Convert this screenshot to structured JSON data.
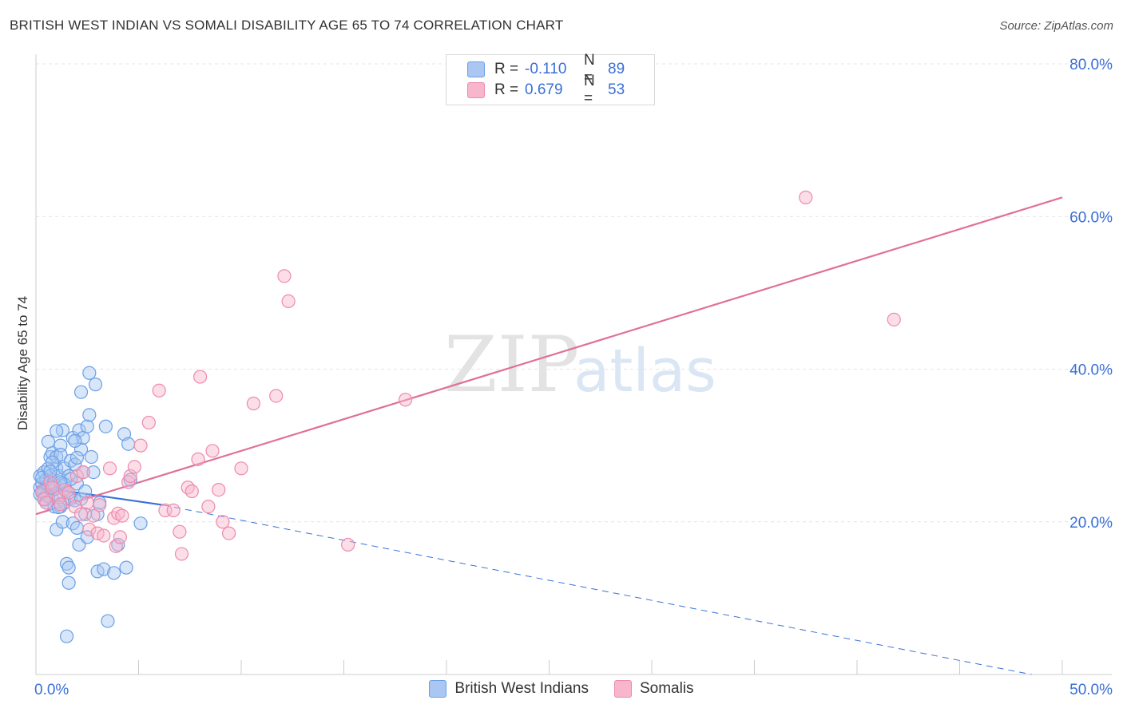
{
  "header": {
    "title": "BRITISH WEST INDIAN VS SOMALI DISABILITY AGE 65 TO 74 CORRELATION CHART",
    "source": "Source: ZipAtlas.com"
  },
  "watermark": {
    "zip": "ZIP",
    "atlas": "atlas"
  },
  "legend_stats": [
    {
      "r_label": "R =",
      "r_value": "-0.110",
      "n_label": "N =",
      "n_value": "89",
      "color": "#a9c7f2"
    },
    {
      "r_label": "R =",
      "r_value": "0.679",
      "n_label": "N =",
      "n_value": "53",
      "color": "#f7b6cb"
    }
  ],
  "chart_data": {
    "type": "scatter",
    "title": "BRITISH WEST INDIAN VS SOMALI DISABILITY AGE 65 TO 74 CORRELATION CHART",
    "xlabel": "",
    "ylabel": "Disability Age 65 to 74",
    "xlim": [
      0,
      50
    ],
    "ylim": [
      0,
      80
    ],
    "x_tick_labels": [
      {
        "value": 0,
        "label": "0.0%"
      },
      {
        "value": 50,
        "label": "50.0%"
      }
    ],
    "y_tick_labels": [
      {
        "value": 20,
        "label": "20.0%"
      },
      {
        "value": 40,
        "label": "40.0%"
      },
      {
        "value": 60,
        "label": "60.0%"
      },
      {
        "value": 80,
        "label": "80.0%"
      }
    ],
    "grid": true,
    "legend_position": "bottom",
    "series": [
      {
        "name": "British West Indians",
        "color": "#6a9fe6",
        "fill": "#a9c7f2",
        "line_color": "#3a72d6",
        "trend": {
          "solid": [
            [
              0,
              24.6
            ],
            [
              6.2,
              22.2
            ]
          ],
          "dashed": [
            [
              6.2,
              22.2
            ],
            [
              48.5,
              0.0
            ]
          ]
        },
        "points": [
          [
            0.2,
            24.5
          ],
          [
            0.2,
            26
          ],
          [
            0.3,
            25
          ],
          [
            0.3,
            23.8
          ],
          [
            0.4,
            26.5
          ],
          [
            0.4,
            24
          ],
          [
            0.5,
            25.5
          ],
          [
            0.5,
            22.5
          ],
          [
            0.6,
            24.8
          ],
          [
            0.6,
            27
          ],
          [
            0.6,
            30.5
          ],
          [
            0.7,
            26
          ],
          [
            0.7,
            24
          ],
          [
            0.7,
            28.5
          ],
          [
            0.8,
            23
          ],
          [
            0.8,
            29
          ],
          [
            0.9,
            25
          ],
          [
            0.9,
            22
          ],
          [
            1.0,
            27
          ],
          [
            1.0,
            28.5
          ],
          [
            1.0,
            19
          ],
          [
            1.1,
            23.5
          ],
          [
            1.1,
            26
          ],
          [
            1.2,
            22
          ],
          [
            1.2,
            30
          ],
          [
            1.2,
            28.8
          ],
          [
            1.3,
            25
          ],
          [
            1.3,
            32
          ],
          [
            1.3,
            20
          ],
          [
            1.4,
            22.5
          ],
          [
            1.4,
            27
          ],
          [
            1.5,
            24
          ],
          [
            1.5,
            14.5
          ],
          [
            1.5,
            5
          ],
          [
            1.6,
            26
          ],
          [
            1.6,
            14
          ],
          [
            1.6,
            12
          ],
          [
            1.7,
            28
          ],
          [
            1.7,
            23
          ],
          [
            1.8,
            19.8
          ],
          [
            1.8,
            31
          ],
          [
            1.9,
            22.8
          ],
          [
            1.9,
            27.5
          ],
          [
            2.0,
            25
          ],
          [
            2.0,
            19.2
          ],
          [
            2.1,
            17
          ],
          [
            2.1,
            32
          ],
          [
            2.2,
            23
          ],
          [
            2.2,
            37
          ],
          [
            2.2,
            29.5
          ],
          [
            2.3,
            31
          ],
          [
            2.3,
            26.5
          ],
          [
            2.4,
            21
          ],
          [
            2.4,
            24
          ],
          [
            2.5,
            32.5
          ],
          [
            2.5,
            18
          ],
          [
            2.6,
            34
          ],
          [
            2.6,
            39.5
          ],
          [
            2.7,
            28.5
          ],
          [
            2.8,
            26.5
          ],
          [
            2.9,
            38
          ],
          [
            3.0,
            21
          ],
          [
            3.0,
            13.5
          ],
          [
            3.1,
            22.5
          ],
          [
            3.3,
            13.8
          ],
          [
            3.4,
            32.5
          ],
          [
            3.5,
            7
          ],
          [
            3.8,
            13.3
          ],
          [
            4.0,
            17
          ],
          [
            4.3,
            31.5
          ],
          [
            4.4,
            14
          ],
          [
            4.5,
            30.2
          ],
          [
            4.6,
            25.5
          ],
          [
            5.1,
            19.8
          ],
          [
            0.3,
            25.8
          ],
          [
            0.5,
            23.5
          ],
          [
            0.8,
            27.8
          ],
          [
            0.9,
            24.3
          ],
          [
            1.1,
            21.9
          ],
          [
            1.4,
            24.9
          ],
          [
            1.7,
            25.6
          ],
          [
            0.4,
            22.9
          ],
          [
            0.6,
            23.3
          ],
          [
            1.0,
            31.9
          ],
          [
            1.9,
            30.6
          ],
          [
            0.2,
            23.6
          ],
          [
            0.7,
            26.6
          ],
          [
            1.2,
            25.2
          ],
          [
            2.0,
            28.4
          ]
        ]
      },
      {
        "name": "Somalis",
        "color": "#ee8aab",
        "fill": "#f7b6cb",
        "line_color": "#e07099",
        "trend": {
          "solid": [
            [
              0,
              21.0
            ],
            [
              50,
              62.5
            ]
          ]
        },
        "points": [
          [
            0.3,
            24
          ],
          [
            0.4,
            23
          ],
          [
            0.5,
            22.5
          ],
          [
            0.7,
            25.2
          ],
          [
            0.8,
            24.5
          ],
          [
            1.1,
            23.2
          ],
          [
            1.2,
            22.3
          ],
          [
            1.4,
            24.2
          ],
          [
            1.6,
            23.8
          ],
          [
            1.9,
            22
          ],
          [
            2.0,
            26
          ],
          [
            2.2,
            21
          ],
          [
            2.3,
            26.5
          ],
          [
            2.5,
            22.5
          ],
          [
            2.6,
            19
          ],
          [
            2.8,
            20.8
          ],
          [
            3.0,
            18.5
          ],
          [
            3.1,
            22.2
          ],
          [
            3.3,
            18.2
          ],
          [
            3.6,
            27
          ],
          [
            3.8,
            20.5
          ],
          [
            3.9,
            16.8
          ],
          [
            4.0,
            21.1
          ],
          [
            4.1,
            18
          ],
          [
            4.2,
            20.8
          ],
          [
            4.5,
            25.2
          ],
          [
            4.6,
            26
          ],
          [
            4.8,
            27.2
          ],
          [
            5.1,
            30
          ],
          [
            5.5,
            33
          ],
          [
            6.0,
            37.2
          ],
          [
            6.3,
            21.5
          ],
          [
            6.7,
            21.5
          ],
          [
            7.0,
            18.7
          ],
          [
            7.1,
            15.8
          ],
          [
            7.4,
            24.5
          ],
          [
            7.6,
            24
          ],
          [
            7.9,
            28.2
          ],
          [
            8.0,
            39
          ],
          [
            8.4,
            22
          ],
          [
            8.6,
            29.3
          ],
          [
            8.9,
            24.2
          ],
          [
            9.1,
            20
          ],
          [
            9.4,
            18.5
          ],
          [
            10.0,
            27
          ],
          [
            10.6,
            35.5
          ],
          [
            11.7,
            36.5
          ],
          [
            12.1,
            52.2
          ],
          [
            12.3,
            48.9
          ],
          [
            15.2,
            17
          ],
          [
            18.0,
            36
          ],
          [
            37.5,
            62.5
          ],
          [
            41.8,
            46.5
          ]
        ]
      }
    ]
  },
  "legend_bottom": [
    {
      "label": "British West Indians",
      "color": "#a9c7f2"
    },
    {
      "label": "Somalis",
      "color": "#f7b6cb"
    }
  ]
}
